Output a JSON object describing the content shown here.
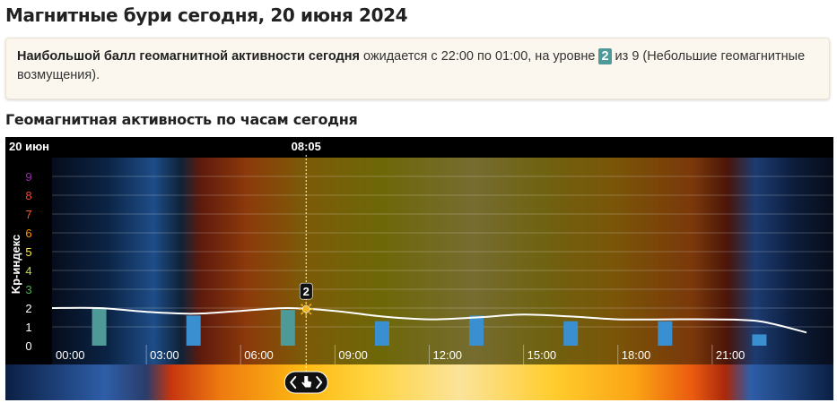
{
  "page": {
    "title": "Магнитные бури сегодня, 20 июня 2024",
    "info_bold": "Наибольшой балл геомагнитной активности сегодня",
    "info_text_1": " ожидается с 22:00 по 01:00, на уровне ",
    "info_level": "2",
    "info_text_2": " из 9 (Небольшие геомагнитные возмущения).",
    "section_title": "Геомагнитная активность по часам сегодня"
  },
  "chart_data": {
    "type": "bar",
    "date_label": "20 июн",
    "current_time": "08:05",
    "current_value": "2",
    "ylabel": "Kp-индекс",
    "ylim": [
      0,
      9
    ],
    "y_ticks": [
      "0",
      "1",
      "2",
      "3",
      "4",
      "5",
      "6",
      "7",
      "8",
      "9"
    ],
    "x_ticks": [
      "00:00",
      "03:00",
      "06:00",
      "09:00",
      "12:00",
      "15:00",
      "18:00",
      "21:00"
    ],
    "categories": [
      "00:00",
      "03:00",
      "06:00",
      "09:00",
      "12:00",
      "15:00",
      "18:00",
      "21:00"
    ],
    "values": [
      2,
      1.6,
      1.9,
      1.3,
      1.6,
      1.3,
      1.3,
      0.6
    ],
    "smooth_line": {
      "x_hours": [
        0,
        1.5,
        3,
        4.5,
        6,
        7.5,
        9,
        10.5,
        12,
        13.5,
        15,
        16.5,
        18,
        19.5,
        21,
        22.5,
        24
      ],
      "values": [
        2.0,
        2.0,
        1.8,
        1.7,
        1.85,
        2.0,
        1.85,
        1.55,
        1.4,
        1.5,
        1.65,
        1.55,
        1.4,
        1.4,
        1.4,
        1.3,
        0.7
      ]
    },
    "y_tick_colors": [
      "#ffffff",
      "#ffffff",
      "#ffffff",
      "#4caf50",
      "#cddc39",
      "#ffeb3b",
      "#ff9800",
      "#ff5722",
      "#f44336",
      "#9c27b0"
    ],
    "bar_colors": {
      "teal": "#4e9a99",
      "blue": "#3a8fd0"
    },
    "bar_color_keys": [
      "teal",
      "blue",
      "teal",
      "blue",
      "blue",
      "blue",
      "blue",
      "blue"
    ],
    "line_color": "#ffffff",
    "grid": true
  }
}
